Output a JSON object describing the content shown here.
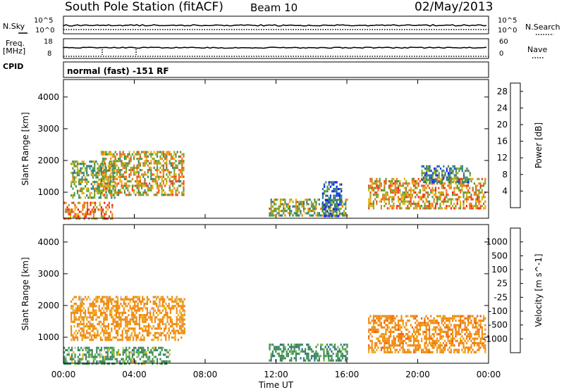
{
  "header": {
    "station": "South Pole Station (fitACF)",
    "beam": "Beam 10",
    "date": "02/May/2013"
  },
  "summary": {
    "nsky_label": "N.Sky",
    "nsky_ticks": [
      "10^5",
      "10^0"
    ],
    "nsearch_label": "N.Search",
    "freq_label_1": "Freq.",
    "freq_label_2": "[MHz]",
    "freq_ticks": [
      "18",
      "8"
    ],
    "nave_label": "Nave",
    "nave_ticks": [
      "60",
      "0"
    ],
    "cpid_label": "CPID",
    "cpid_value": "normal (fast) -151 RF"
  },
  "chart_data": [
    {
      "type": "heatmap",
      "name": "power",
      "ylabel": "Slant Range [km]",
      "xlabel": "Time UT",
      "ylim": [
        180,
        4550
      ],
      "xlim": [
        0,
        24
      ],
      "yticks": [
        "4000",
        "3000",
        "2000",
        "1000"
      ],
      "ytick_values": [
        4000,
        3000,
        2000,
        1000
      ],
      "colorbar": {
        "label": "Power [dB]",
        "ticks": [
          "28",
          "24",
          "20",
          "16",
          "12",
          "8",
          "4"
        ],
        "tick_values": [
          28,
          24,
          20,
          16,
          12,
          8,
          4
        ],
        "range": [
          0,
          30
        ],
        "colors": [
          "#1a1aff",
          "#1f4fcc",
          "#2b7b8c",
          "#3d8a5a",
          "#5a9a3c",
          "#9aa820",
          "#e8b010",
          "#f07a1a",
          "#ee4a20",
          "#ff1a1a"
        ]
      },
      "echo_regions": [
        {
          "t": [
            0.4,
            2.9
          ],
          "range": [
            800,
            2000
          ],
          "value": 14
        },
        {
          "t": [
            2.1,
            6.8
          ],
          "range": [
            950,
            2300
          ],
          "value": 18
        },
        {
          "t": [
            0.0,
            2.8
          ],
          "range": [
            200,
            700
          ],
          "value": 22
        },
        {
          "t": [
            11.6,
            16.0
          ],
          "range": [
            250,
            800
          ],
          "value": 15
        },
        {
          "t": [
            14.6,
            15.7
          ],
          "range": [
            250,
            1350
          ],
          "value": 6
        },
        {
          "t": [
            17.2,
            23.8
          ],
          "range": [
            500,
            1450
          ],
          "value": 20
        },
        {
          "t": [
            20.2,
            23.0
          ],
          "range": [
            1300,
            1850
          ],
          "value": 10
        }
      ]
    },
    {
      "type": "heatmap",
      "name": "velocity",
      "ylabel": "Slant Range [km]",
      "xlabel": "Time UT",
      "ylim": [
        180,
        4550
      ],
      "xlim": [
        0,
        24
      ],
      "yticks": [
        "4000",
        "3000",
        "2000",
        "1000"
      ],
      "ytick_values": [
        4000,
        3000,
        2000,
        1000
      ],
      "colorbar": {
        "label": "Velocity [m s^-1]",
        "ticks": [
          "1000",
          "500",
          "100",
          "25",
          "-25",
          "-100",
          "-500",
          "-1000"
        ],
        "tick_values": [
          1000,
          500,
          100,
          25,
          -25,
          -100,
          -500,
          -1000
        ],
        "colors": [
          "#ff1a1a",
          "#f05a10",
          "#f08a10",
          "#f0b010",
          "#c0c0c0",
          "#70c040",
          "#3d8a5a",
          "#2b6aa0",
          "#1a3ac8"
        ]
      },
      "echo_regions": [
        {
          "t": [
            0.4,
            6.8
          ],
          "range": [
            900,
            2300
          ],
          "value": -250
        },
        {
          "t": [
            0.0,
            6.0
          ],
          "range": [
            200,
            700
          ],
          "value": 200
        },
        {
          "t": [
            11.6,
            16.0
          ],
          "range": [
            250,
            800
          ],
          "value": 300
        },
        {
          "t": [
            17.2,
            23.8
          ],
          "range": [
            500,
            1700
          ],
          "value": -300
        }
      ]
    }
  ],
  "xaxis": {
    "ticks": [
      "00:00",
      "04:00",
      "08:00",
      "12:00",
      "16:00",
      "20:00",
      "00:00"
    ],
    "tick_hours": [
      0,
      4,
      8,
      12,
      16,
      20,
      24
    ],
    "label": "Time UT"
  }
}
